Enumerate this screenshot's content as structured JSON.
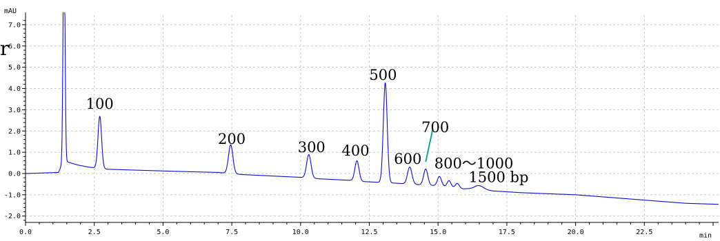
{
  "chart_data": {
    "type": "line",
    "y_unit_label": "mAU",
    "x_unit_label": "min",
    "xlim": [
      0,
      25.2
    ],
    "ylim": [
      -2.3,
      7.45
    ],
    "grid": true,
    "x_ticks": [
      "0.0",
      "2.5",
      "5.0",
      "7.5",
      "10.0",
      "12.5",
      "15.0",
      "17.5",
      "20.0",
      "22.5"
    ],
    "y_ticks": [
      "7.0",
      "6.0",
      "5.0",
      "4.0",
      "3.0",
      "2.0",
      "1.0",
      "0.0",
      "-1.0",
      "-2.0"
    ],
    "baseline": {
      "x": [
        0.0,
        1.2,
        1.38,
        1.9,
        2.3,
        3.0,
        5.0,
        7.0,
        7.9,
        10.0,
        10.7,
        11.8,
        12.3,
        13.4,
        13.8,
        14.3,
        14.8,
        15.3,
        15.9,
        16.4,
        17.0,
        18.0,
        20.0,
        22.5,
        24.0,
        25.2
      ],
      "y": [
        0.0,
        0.05,
        0.6,
        0.4,
        0.3,
        0.2,
        0.12,
        0.05,
        -0.05,
        -0.18,
        -0.25,
        -0.32,
        -0.38,
        -0.45,
        -0.48,
        -0.52,
        -0.56,
        -0.62,
        -0.72,
        -0.7,
        -0.82,
        -0.9,
        -1.0,
        -1.25,
        -1.4,
        -1.45
      ]
    },
    "peaks": [
      {
        "x": 1.4,
        "height": 11.0,
        "width": 0.035
      },
      {
        "x": 2.7,
        "height": 2.45,
        "width": 0.065
      },
      {
        "x": 7.46,
        "height": 1.35,
        "width": 0.08
      },
      {
        "x": 10.3,
        "height": 1.1,
        "width": 0.08
      },
      {
        "x": 12.05,
        "height": 0.95,
        "width": 0.075
      },
      {
        "x": 13.08,
        "height": 4.7,
        "width": 0.07
      },
      {
        "x": 13.97,
        "height": 0.8,
        "width": 0.08
      },
      {
        "x": 14.55,
        "height": 0.75,
        "width": 0.075
      },
      {
        "x": 15.05,
        "height": 0.45,
        "width": 0.075
      },
      {
        "x": 15.4,
        "height": 0.3,
        "width": 0.07
      },
      {
        "x": 15.7,
        "height": 0.22,
        "width": 0.07
      },
      {
        "x": 16.5,
        "height": 0.15,
        "width": 0.15
      }
    ],
    "annotations": [
      {
        "text": "100",
        "x": 2.7,
        "y": 3.05
      },
      {
        "text": "200",
        "x": 7.5,
        "y": 1.4
      },
      {
        "text": "300",
        "x": 10.4,
        "y": 1.0
      },
      {
        "text": "400",
        "x": 12.0,
        "y": 0.85
      },
      {
        "text": "500",
        "x": 13.0,
        "y": 4.4
      },
      {
        "text": "600",
        "x": 13.9,
        "y": 0.45
      },
      {
        "text": "700",
        "x": 14.9,
        "y": 1.95
      },
      {
        "text": "800～1000",
        "x": 16.3,
        "y": 0.25
      },
      {
        "text": "1500 bp",
        "x": 17.2,
        "y": -0.4
      }
    ],
    "clipped_label_fragment": "r",
    "colors": {
      "trace": "#0a0ad6",
      "marker": "#17a589",
      "grid": "#c8c8c8",
      "axis": "#000000"
    }
  }
}
